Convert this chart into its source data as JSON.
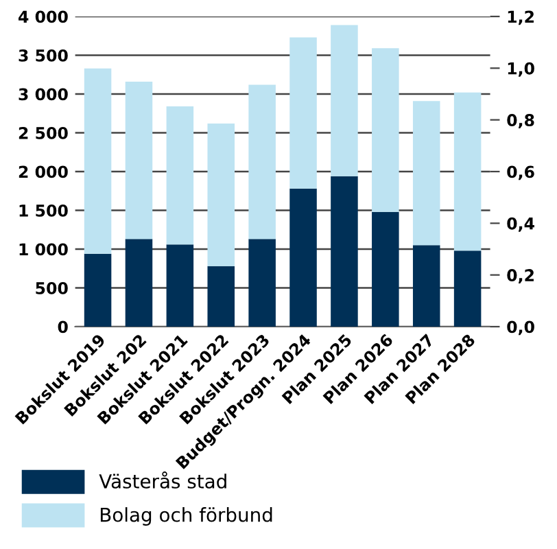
{
  "chart_data": {
    "type": "bar",
    "stacked": true,
    "categories": [
      "Bokslut 2019",
      "Bokslut 202",
      "Bokslut 2021",
      "Bokslut 2022",
      "Bokslut 2023",
      "Budget/Progn. 2024",
      "Plan 2025",
      "Plan 2026",
      "Plan 2027",
      "Plan 2028"
    ],
    "series": [
      {
        "name": "Västerås stad",
        "color": "#003057",
        "values": [
          940,
          1130,
          1060,
          780,
          1130,
          1780,
          1940,
          1480,
          1050,
          980
        ]
      },
      {
        "name": "Bolag och förbund",
        "color": "#bde3f2",
        "values": [
          2390,
          2030,
          1780,
          1840,
          1990,
          1950,
          1950,
          2110,
          1860,
          2040
        ]
      }
    ],
    "ylim": [
      0,
      4000
    ],
    "yticks": [
      0,
      {
        "value": 500,
        "label": "500"
      },
      {
        "value": 1000,
        "label": "1 000"
      },
      {
        "value": 1500,
        "label": "1 500"
      },
      {
        "value": 2000,
        "label": "2 000"
      },
      {
        "value": 2500,
        "label": "2 500"
      },
      {
        "value": 3000,
        "label": "3 000"
      },
      {
        "value": 3500,
        "label": "3 500"
      },
      {
        "value": 4000,
        "label": "4 000"
      }
    ],
    "y2lim": [
      0,
      1.2
    ],
    "y2ticks": [
      {
        "value": 0,
        "label": "0,0"
      },
      {
        "value": 0.2,
        "label": "0,2"
      },
      {
        "value": 0.4,
        "label": "0,4"
      },
      {
        "value": 0.6,
        "label": "0,6"
      },
      {
        "value": 0.8,
        "label": "0,8"
      },
      {
        "value": 1.0,
        "label": "1,0"
      },
      {
        "value": 1.2,
        "label": "1,2"
      }
    ],
    "grid": "y",
    "legend": "bottom left"
  }
}
